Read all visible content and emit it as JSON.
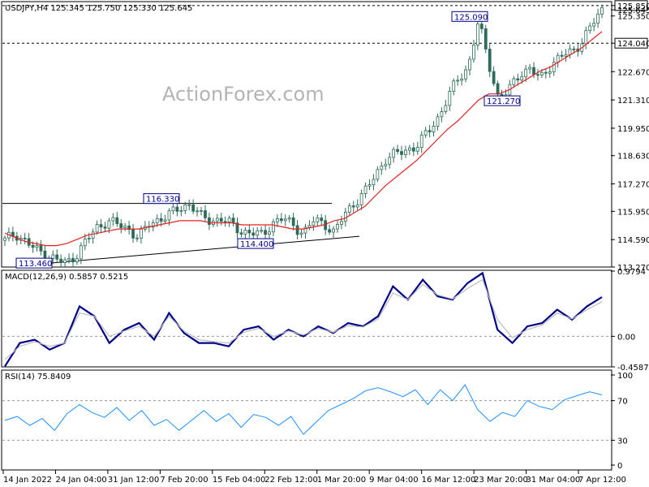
{
  "title_line": "USDJPY,H4  125.345 125.750 125.330 125.645",
  "watermark": "ActionForex.com",
  "colors": {
    "candle": "#2f6b5a",
    "ema_red": "#e52222",
    "macd": "#00008b",
    "signal": "#bdbdbd",
    "rsi": "#1e90ff",
    "label_border": "#00008b"
  },
  "chart_data": [
    {
      "type": "candlestick",
      "name": "price",
      "title": "USDJPY,H4",
      "ohlc_current": {
        "open": 125.345,
        "high": 125.75,
        "low": 125.33,
        "close": 125.645
      },
      "ylim": [
        113.27,
        126.0
      ],
      "y_ticks": [
        "125.850",
        "125.645",
        "125.350",
        "124.040",
        "122.670",
        "121.310",
        "119.950",
        "118.630",
        "117.270",
        "115.950",
        "114.590",
        "113.270"
      ],
      "x_ticks": [
        "14 Jan 2022",
        "24 Jan 04:00",
        "31 Jan 12:00",
        "7 Feb 20:00",
        "15 Feb 04:00",
        "22 Feb 12:00",
        "1 Mar 20:00",
        "9 Mar 04:00",
        "16 Mar 12:00",
        "23 Mar 20:00",
        "31 Mar 04:00",
        "7 Apr 12:00"
      ],
      "close_path": [
        114.55,
        114.9,
        114.5,
        114.1,
        113.9,
        113.6,
        113.46,
        113.9,
        114.6,
        115.2,
        115.5,
        115.3,
        115.1,
        114.7,
        115.3,
        115.6,
        115.8,
        116.1,
        116.33,
        115.7,
        115.5,
        115.6,
        115.3,
        115.0,
        114.9,
        114.8,
        115.4,
        115.6,
        115.3,
        114.9,
        115.5,
        115.4,
        114.9,
        115.8,
        116.4,
        116.9,
        117.7,
        118.5,
        118.7,
        118.9,
        119.1,
        119.7,
        120.4,
        121.4,
        122.3,
        122.9,
        125.09,
        123.1,
        121.27,
        121.8,
        122.6,
        122.8,
        122.3,
        123.0,
        123.4,
        123.6,
        124.1,
        124.9,
        125.645
      ],
      "ema_path": [
        114.9,
        114.7,
        114.5,
        114.4,
        114.3,
        114.3,
        114.4,
        114.6,
        114.8,
        114.9,
        115.0,
        115.1,
        115.1,
        115.1,
        115.2,
        115.3,
        115.4,
        115.5,
        115.5,
        115.5,
        115.4,
        115.4,
        115.4,
        115.3,
        115.3,
        115.3,
        115.3,
        115.2,
        115.1,
        115.1,
        115.2,
        115.3,
        115.5,
        115.6,
        115.9,
        116.2,
        116.7,
        117.2,
        117.6,
        118.0,
        118.4,
        118.9,
        119.4,
        119.9,
        120.3,
        120.8,
        121.3,
        121.6,
        121.6,
        121.8,
        122.1,
        122.4,
        122.7,
        122.9,
        123.2,
        123.5,
        123.8,
        124.2,
        124.6
      ],
      "horizontal_levels": [
        {
          "label": "125.850",
          "value": 125.85,
          "style": "dashed"
        },
        {
          "label": "124.040",
          "value": 124.04,
          "style": "dashed"
        }
      ],
      "annotations": [
        {
          "label": "116.330",
          "value": 116.33
        },
        {
          "label": "114.400",
          "value": 114.4
        },
        {
          "label": "113.460",
          "value": 113.46
        },
        {
          "label": "125.090",
          "value": 125.09
        },
        {
          "label": "121.270",
          "value": 121.27
        }
      ],
      "trendlines": [
        {
          "name": "resistance",
          "from": 116.33,
          "to": 116.33
        },
        {
          "name": "support",
          "from": 113.46,
          "to": 114.75
        }
      ]
    },
    {
      "type": "line",
      "name": "MACD",
      "title": "MACD(12,26,9) 0.5857 0.5215",
      "ylim": [
        -0.4587,
        0.9794
      ],
      "y_ticks": [
        "0.9794",
        "0.00",
        "-0.4587"
      ],
      "zero_line": 0.0,
      "series": [
        {
          "name": "MACD",
          "values": [
            -0.45,
            -0.1,
            -0.05,
            -0.2,
            -0.1,
            0.45,
            0.3,
            -0.1,
            0.1,
            0.2,
            -0.05,
            0.35,
            0.05,
            -0.1,
            -0.1,
            -0.15,
            0.1,
            0.15,
            -0.05,
            0.1,
            0.0,
            0.15,
            0.05,
            0.2,
            0.15,
            0.3,
            0.75,
            0.55,
            0.85,
            0.6,
            0.55,
            0.8,
            0.95,
            0.1,
            -0.1,
            0.15,
            0.2,
            0.4,
            0.25,
            0.45,
            0.59
          ]
        },
        {
          "name": "Signal",
          "values": [
            -0.35,
            -0.15,
            -0.08,
            -0.15,
            -0.1,
            0.35,
            0.3,
            0.0,
            0.08,
            0.15,
            0.0,
            0.3,
            0.08,
            -0.05,
            -0.08,
            -0.1,
            0.06,
            0.12,
            0.0,
            0.08,
            0.02,
            0.12,
            0.06,
            0.16,
            0.14,
            0.26,
            0.65,
            0.55,
            0.78,
            0.62,
            0.56,
            0.72,
            0.85,
            0.25,
            -0.02,
            0.1,
            0.17,
            0.35,
            0.26,
            0.4,
            0.52
          ]
        }
      ]
    },
    {
      "type": "line",
      "name": "RSI",
      "title": "RSI(14) 75.8409",
      "ylim": [
        0,
        100
      ],
      "y_ticks": [
        "100",
        "70",
        "30",
        "0"
      ],
      "levels": [
        70,
        30
      ],
      "series": [
        {
          "name": "RSI",
          "values": [
            50,
            54,
            45,
            52,
            40,
            57,
            66,
            58,
            53,
            63,
            50,
            60,
            45,
            51,
            40,
            50,
            60,
            49,
            57,
            43,
            56,
            53,
            45,
            54,
            36,
            48,
            60,
            66,
            72,
            80,
            83,
            79,
            74,
            81,
            66,
            81,
            70,
            86,
            61,
            49,
            58,
            54,
            70,
            64,
            61,
            71,
            75,
            79,
            75.84
          ]
        }
      ]
    }
  ]
}
